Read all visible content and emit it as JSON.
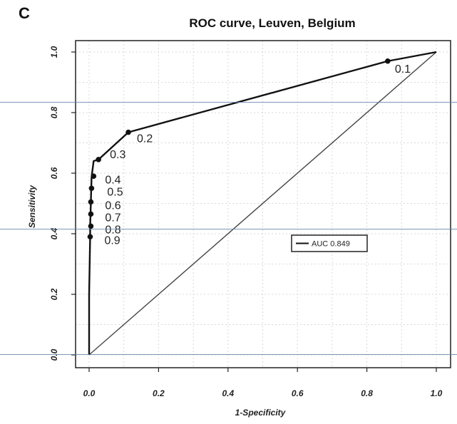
{
  "panel_label": "C",
  "chart_data": {
    "type": "line",
    "title": "ROC curve, Leuven, Belgium",
    "xlabel": "1-Specificity",
    "ylabel": "Sensitivity",
    "xlim": [
      0,
      1
    ],
    "ylim": [
      0,
      1
    ],
    "xticks": [
      "0.0",
      "0.2",
      "0.4",
      "0.6",
      "0.8",
      "1.0"
    ],
    "yticks": [
      "0.0",
      "0.2",
      "0.4",
      "0.6",
      "0.8",
      "1.0"
    ],
    "grid": true,
    "legend": {
      "position": "center-right",
      "entries": [
        "AUC 0.849"
      ]
    },
    "series": [
      {
        "name": "AUC 0.849",
        "x": [
          0.0,
          0.0,
          0.003,
          0.003,
          0.004,
          0.005,
          0.006,
          0.007,
          0.008,
          0.013,
          0.027,
          0.113,
          0.86,
          1.0
        ],
        "y": [
          0.0,
          0.2,
          0.39,
          0.425,
          0.465,
          0.5,
          0.545,
          0.585,
          0.595,
          0.64,
          0.645,
          0.735,
          0.97,
          1.0
        ]
      },
      {
        "name": "",
        "x": [
          0,
          1
        ],
        "y": [
          0,
          1
        ]
      }
    ],
    "thresholds": [
      {
        "label": "0.1",
        "x": 0.86,
        "y": 0.97
      },
      {
        "label": "0.2",
        "x": 0.113,
        "y": 0.735
      },
      {
        "label": "0.3",
        "x": 0.027,
        "y": 0.645
      },
      {
        "label": "0.4",
        "x": 0.013,
        "y": 0.59
      },
      {
        "label": "0.5",
        "x": 0.007,
        "y": 0.55
      },
      {
        "label": "0.6",
        "x": 0.005,
        "y": 0.505
      },
      {
        "label": "0.7",
        "x": 0.005,
        "y": 0.465
      },
      {
        "label": "0.8",
        "x": 0.005,
        "y": 0.425
      },
      {
        "label": "0.9",
        "x": 0.003,
        "y": 0.39
      }
    ]
  },
  "separator_lines": 3
}
